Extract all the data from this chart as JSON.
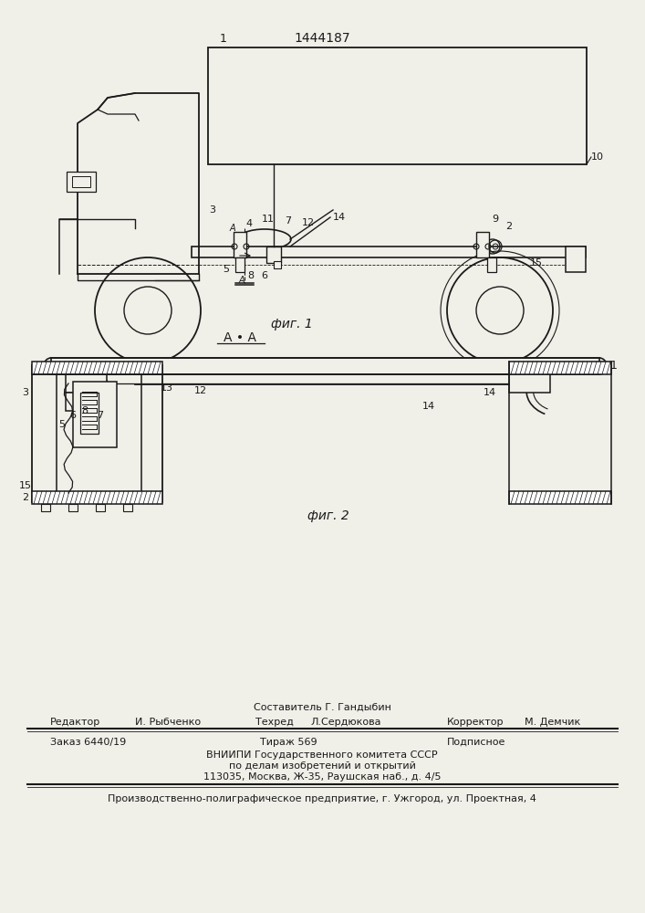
{
  "patent_number": "1444187",
  "fig1_caption": "фиг. 1",
  "fig2_caption": "фиг. 2",
  "section_label": "А • А",
  "bg_color": "#f0efe8",
  "line_color": "#1a1a1a",
  "footer": {
    "composer": "Составитель Г. Гандыбин",
    "editor_label": "Редактор",
    "editor": "И. Рыбченко",
    "techred_label": "Техред",
    "techred": "Л.Сердюкова",
    "corrector_label": "Корректор",
    "corrector": "М. Демчик",
    "order_label": "Заказ 6440/19",
    "circulation_label": "Тираж 569",
    "signed_label": "Подписное",
    "vniip1": "ВНИИПИ Государственного комитета СССР",
    "vniip2": "по делам изобретений и открытий",
    "vniip3": "113035, Москва, Ж-35, Раушская наб., д. 4/5",
    "enterprise": "Производственно-полиграфическое предприятие, г. Ужгород, ул. Проектная, 4"
  }
}
